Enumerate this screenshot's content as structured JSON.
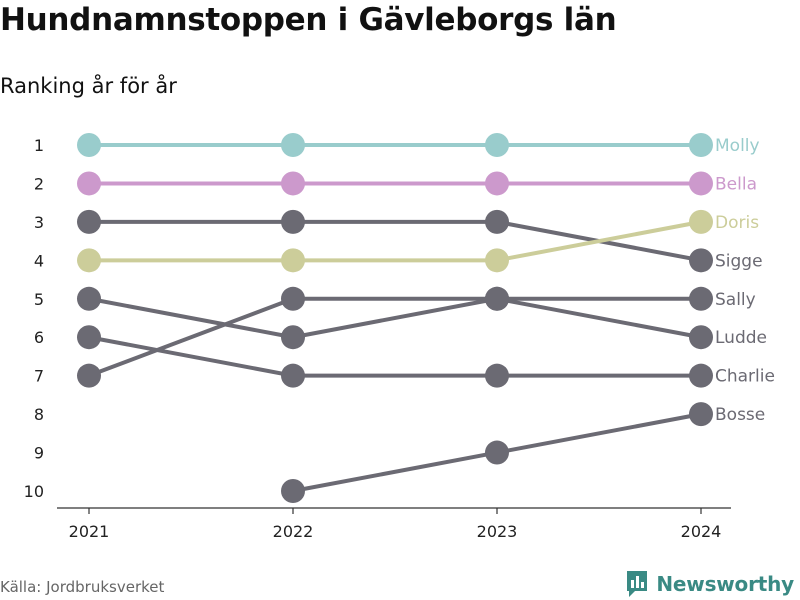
{
  "title": "Hundnamnstoppen i Gävleborgs län",
  "subtitle": "Ranking år för år",
  "source": "Källa: Jordbruksverket",
  "brand": {
    "name": "Newsworthy",
    "icon": "newsworthy-logo-icon",
    "color": "#3a8a84"
  },
  "chart_data": {
    "type": "line",
    "x": [
      "2021",
      "2022",
      "2023",
      "2024"
    ],
    "y_ticks": [
      "1",
      "2",
      "3",
      "4",
      "5",
      "6",
      "7",
      "8",
      "9",
      "10"
    ],
    "ylim": [
      1,
      10
    ],
    "y_reversed": true,
    "grid": false,
    "series": [
      {
        "name": "Charlie",
        "values": [
          6,
          7,
          7,
          7
        ],
        "color": "#6b6a73",
        "highlight": false
      },
      {
        "name": "Bosse",
        "values": [
          null,
          10,
          9,
          8
        ],
        "color": "#6b6a73",
        "highlight": false
      },
      {
        "name": "Ludde",
        "values": [
          5,
          6,
          5,
          6
        ],
        "color": "#6b6a73",
        "highlight": false
      },
      {
        "name": "Sally",
        "values": [
          7,
          5,
          5,
          5
        ],
        "color": "#6b6a73",
        "highlight": false
      },
      {
        "name": "Sigge",
        "values": [
          3,
          3,
          3,
          4
        ],
        "color": "#6b6a73",
        "highlight": false
      },
      {
        "name": "Doris",
        "values": [
          4,
          4,
          4,
          3
        ],
        "color": "#cccd9a",
        "highlight": true
      },
      {
        "name": "Bella",
        "values": [
          2,
          2,
          2,
          2
        ],
        "color": "#cc99cc",
        "highlight": true
      },
      {
        "name": "Molly",
        "values": [
          1,
          1,
          1,
          1
        ],
        "color": "#99cccc",
        "highlight": true
      }
    ]
  }
}
